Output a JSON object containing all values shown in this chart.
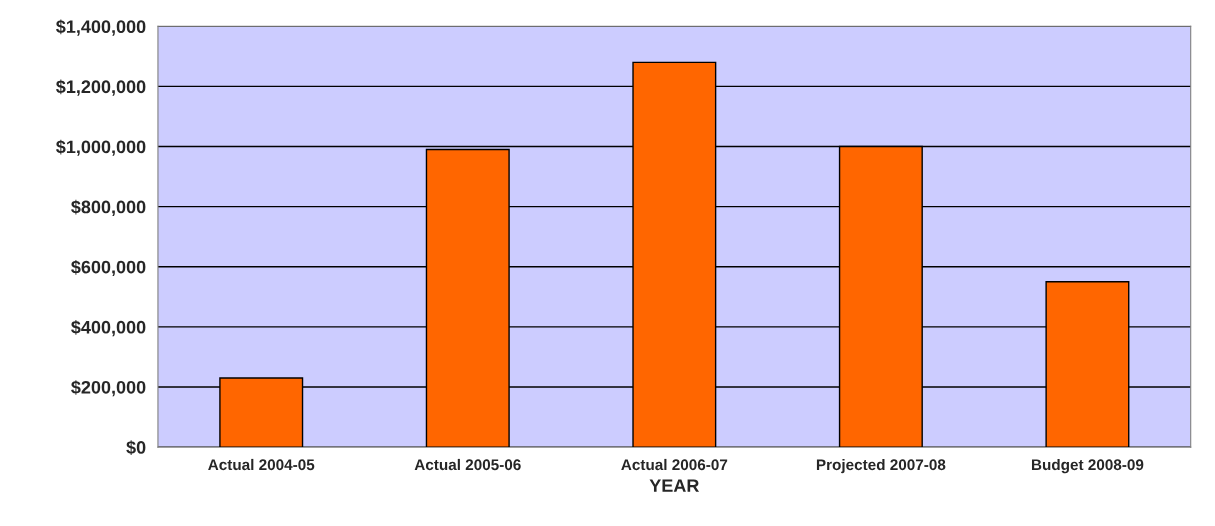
{
  "chart_data": {
    "type": "bar",
    "xlabel": "YEAR",
    "categories": [
      "Actual 2004-05",
      "Actual 2005-06",
      "Actual 2006-07",
      "Projected 2007-08",
      "Budget 2008-09"
    ],
    "values": [
      230000,
      990000,
      1280000,
      1000000,
      550000
    ],
    "color": "#ff6600",
    "ylim": [
      0,
      1400000
    ],
    "yticks": [
      {
        "value": 0,
        "label": "$0"
      },
      {
        "value": 200000,
        "label": "$200,000"
      },
      {
        "value": 400000,
        "label": "$400,000"
      },
      {
        "value": 600000,
        "label": "$600,000"
      },
      {
        "value": 800000,
        "label": "$800,000"
      },
      {
        "value": 1000000,
        "label": "$1,000,000"
      },
      {
        "value": 1200000,
        "label": "$1,200,000"
      },
      {
        "value": 1400000,
        "label": "$1,400,000"
      }
    ],
    "grid": "y"
  }
}
